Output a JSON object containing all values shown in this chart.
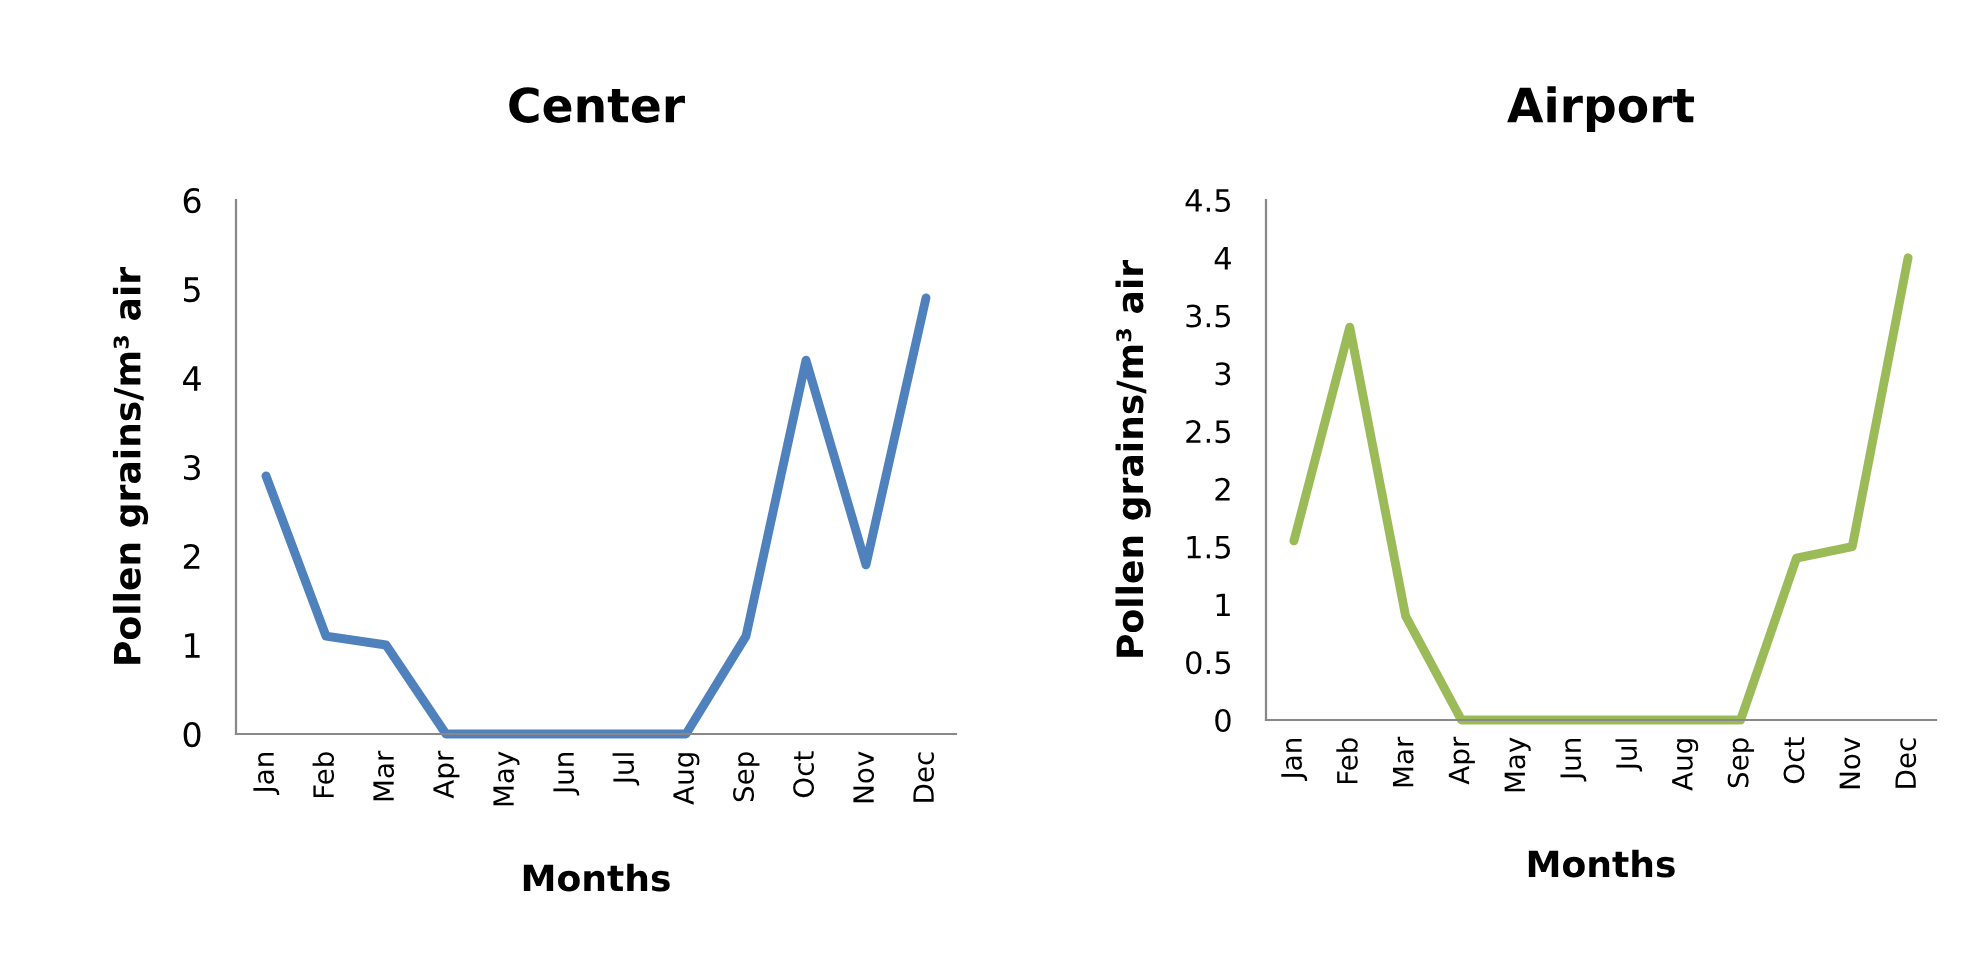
{
  "chart_data": [
    {
      "type": "line",
      "title": "Center",
      "xlabel": "Months",
      "ylabel": "Pollen grains/m³ air",
      "categories": [
        "Jan",
        "Feb",
        "Mar",
        "Apr",
        "May",
        "Jun",
        "Jul",
        "Aug",
        "Sep",
        "Oct",
        "Nov",
        "Dec"
      ],
      "series": [
        {
          "color": "#4f81bd",
          "values": [
            2.9,
            1.1,
            1.0,
            0,
            0,
            0,
            0,
            0,
            1.1,
            4.2,
            1.9,
            4.9
          ]
        }
      ],
      "ylim": [
        0,
        6
      ],
      "yticks": [
        0,
        1,
        2,
        3,
        4,
        5,
        6
      ],
      "grid": false,
      "legend": false,
      "marker": "none",
      "line_style": "solid"
    },
    {
      "type": "line",
      "title": "Airport",
      "xlabel": "Months",
      "ylabel": "Pollen grains/m³ air",
      "categories": [
        "Jan",
        "Feb",
        "Mar",
        "Apr",
        "May",
        "Jun",
        "Jul",
        "Aug",
        "Sep",
        "Oct",
        "Nov",
        "Dec"
      ],
      "series": [
        {
          "color": "#9bbb59",
          "values": [
            1.55,
            3.4,
            0.9,
            0,
            0,
            0,
            0,
            0,
            0,
            1.4,
            1.5,
            4.0
          ]
        }
      ],
      "ylim": [
        0,
        4.5
      ],
      "yticks": [
        0,
        0.5,
        1,
        1.5,
        2,
        2.5,
        3,
        3.5,
        4,
        4.5
      ],
      "grid": false,
      "legend": false,
      "marker": "none",
      "line_style": "solid"
    }
  ]
}
